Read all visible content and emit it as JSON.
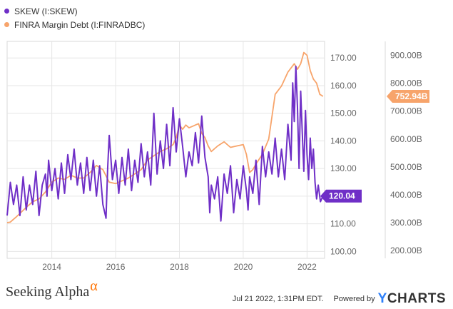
{
  "legend": [
    {
      "label": "SKEW (I:SKEW)",
      "color": "#6f2fc7"
    },
    {
      "label": "FINRA Margin Debt (I:FINRADBC)",
      "color": "#f7a46b"
    }
  ],
  "chart_data": {
    "type": "line",
    "x_ticks": [
      "2014",
      "2016",
      "2018",
      "2020",
      "2022"
    ],
    "x_range": [
      2012.6,
      2022.55
    ],
    "y_left": {
      "ticks": [
        "100.00",
        "110.00",
        "120.00",
        "130.00",
        "140.00",
        "150.00",
        "160.00",
        "170.00"
      ],
      "range": [
        97.5,
        176
      ]
    },
    "y_right": {
      "ticks": [
        "200.00B",
        "300.00B",
        "400.00B",
        "500.00B",
        "600.00B",
        "700.00B",
        "800.00B",
        "900.00B"
      ],
      "range": [
        172,
        950
      ]
    },
    "grid": true,
    "series": [
      {
        "name": "SKEW (I:SKEW)",
        "axis": "left",
        "color": "#6f2fc7",
        "last_value_label": "120.04",
        "points": [
          [
            2012.6,
            113
          ],
          [
            2012.7,
            125
          ],
          [
            2012.8,
            117
          ],
          [
            2012.9,
            124
          ],
          [
            2013.0,
            113
          ],
          [
            2013.1,
            127
          ],
          [
            2013.2,
            115
          ],
          [
            2013.3,
            124
          ],
          [
            2013.4,
            117
          ],
          [
            2013.5,
            129
          ],
          [
            2013.6,
            113
          ],
          [
            2013.7,
            124
          ],
          [
            2013.8,
            128
          ],
          [
            2013.85,
            120
          ],
          [
            2013.9,
            133
          ],
          [
            2014.0,
            122
          ],
          [
            2014.1,
            130
          ],
          [
            2014.2,
            119
          ],
          [
            2014.3,
            132
          ],
          [
            2014.4,
            121
          ],
          [
            2014.5,
            135
          ],
          [
            2014.6,
            126
          ],
          [
            2014.7,
            137
          ],
          [
            2014.8,
            124
          ],
          [
            2014.9,
            132
          ],
          [
            2015.0,
            121
          ],
          [
            2015.1,
            134
          ],
          [
            2015.2,
            122
          ],
          [
            2015.3,
            133
          ],
          [
            2015.4,
            120
          ],
          [
            2015.5,
            131
          ],
          [
            2015.6,
            117
          ],
          [
            2015.7,
            112
          ],
          [
            2015.75,
            130
          ],
          [
            2015.8,
            142
          ],
          [
            2015.9,
            126
          ],
          [
            2016.0,
            133
          ],
          [
            2016.1,
            121
          ],
          [
            2016.2,
            134
          ],
          [
            2016.3,
            124
          ],
          [
            2016.4,
            137
          ],
          [
            2016.5,
            122
          ],
          [
            2016.6,
            133
          ],
          [
            2016.7,
            125
          ],
          [
            2016.8,
            139
          ],
          [
            2016.9,
            127
          ],
          [
            2017.0,
            136
          ],
          [
            2017.1,
            124
          ],
          [
            2017.2,
            150
          ],
          [
            2017.3,
            128
          ],
          [
            2017.4,
            140
          ],
          [
            2017.5,
            130
          ],
          [
            2017.6,
            146
          ],
          [
            2017.7,
            131
          ],
          [
            2017.8,
            152
          ],
          [
            2017.9,
            136
          ],
          [
            2018.0,
            148
          ],
          [
            2018.1,
            138
          ],
          [
            2018.2,
            127
          ],
          [
            2018.3,
            136
          ],
          [
            2018.4,
            131
          ],
          [
            2018.5,
            143
          ],
          [
            2018.6,
            132
          ],
          [
            2018.7,
            149
          ],
          [
            2018.8,
            134
          ],
          [
            2018.9,
            127
          ],
          [
            2018.95,
            114
          ],
          [
            2019.0,
            124
          ],
          [
            2019.1,
            119
          ],
          [
            2019.2,
            127
          ],
          [
            2019.3,
            111
          ],
          [
            2019.4,
            128
          ],
          [
            2019.5,
            121
          ],
          [
            2019.6,
            131
          ],
          [
            2019.7,
            114
          ],
          [
            2019.8,
            126
          ],
          [
            2019.9,
            119
          ],
          [
            2020.0,
            131
          ],
          [
            2020.1,
            122
          ],
          [
            2020.15,
            115
          ],
          [
            2020.2,
            127
          ],
          [
            2020.3,
            121
          ],
          [
            2020.4,
            133
          ],
          [
            2020.5,
            117
          ],
          [
            2020.6,
            138
          ],
          [
            2020.7,
            127
          ],
          [
            2020.8,
            136
          ],
          [
            2020.9,
            128
          ],
          [
            2021.0,
            141
          ],
          [
            2021.1,
            127
          ],
          [
            2021.2,
            137
          ],
          [
            2021.3,
            126
          ],
          [
            2021.4,
            146
          ],
          [
            2021.5,
            133
          ],
          [
            2021.55,
            161
          ],
          [
            2021.6,
            147
          ],
          [
            2021.65,
            167
          ],
          [
            2021.7,
            152
          ],
          [
            2021.75,
            130
          ],
          [
            2021.8,
            158
          ],
          [
            2021.85,
            143
          ],
          [
            2021.9,
            129
          ],
          [
            2021.95,
            151
          ],
          [
            2022.0,
            135
          ],
          [
            2022.05,
            126
          ],
          [
            2022.1,
            141
          ],
          [
            2022.15,
            130
          ],
          [
            2022.2,
            137
          ],
          [
            2022.25,
            125
          ],
          [
            2022.3,
            119
          ],
          [
            2022.35,
            124
          ],
          [
            2022.42,
            118
          ],
          [
            2022.5,
            120.04
          ]
        ]
      },
      {
        "name": "FINRA Margin Debt (I:FINRADBC)",
        "axis": "right",
        "color": "#f7a46b",
        "last_value_label": "752.94B",
        "points": [
          [
            2012.6,
            300
          ],
          [
            2012.7,
            302
          ],
          [
            2012.8,
            312
          ],
          [
            2012.9,
            322
          ],
          [
            2013.0,
            333
          ],
          [
            2013.2,
            355
          ],
          [
            2013.4,
            375
          ],
          [
            2013.6,
            385
          ],
          [
            2013.8,
            410
          ],
          [
            2014.0,
            445
          ],
          [
            2014.2,
            460
          ],
          [
            2014.4,
            455
          ],
          [
            2014.6,
            470
          ],
          [
            2014.8,
            460
          ],
          [
            2015.0,
            460
          ],
          [
            2015.2,
            480
          ],
          [
            2015.4,
            505
          ],
          [
            2015.6,
            490
          ],
          [
            2015.8,
            445
          ],
          [
            2016.0,
            440
          ],
          [
            2016.2,
            450
          ],
          [
            2016.4,
            460
          ],
          [
            2016.6,
            475
          ],
          [
            2016.8,
            490
          ],
          [
            2017.0,
            525
          ],
          [
            2017.2,
            540
          ],
          [
            2017.4,
            555
          ],
          [
            2017.6,
            565
          ],
          [
            2017.8,
            580
          ],
          [
            2017.9,
            605
          ],
          [
            2018.0,
            650
          ],
          [
            2018.1,
            635
          ],
          [
            2018.2,
            650
          ],
          [
            2018.3,
            640
          ],
          [
            2018.4,
            645
          ],
          [
            2018.5,
            650
          ],
          [
            2018.6,
            655
          ],
          [
            2018.7,
            620
          ],
          [
            2018.8,
            605
          ],
          [
            2018.9,
            575
          ],
          [
            2019.0,
            555
          ],
          [
            2019.2,
            575
          ],
          [
            2019.4,
            590
          ],
          [
            2019.6,
            570
          ],
          [
            2019.8,
            575
          ],
          [
            2020.0,
            580
          ],
          [
            2020.1,
            545
          ],
          [
            2020.2,
            480
          ],
          [
            2020.3,
            490
          ],
          [
            2020.4,
            510
          ],
          [
            2020.6,
            545
          ],
          [
            2020.8,
            600
          ],
          [
            2021.0,
            760
          ],
          [
            2021.2,
            790
          ],
          [
            2021.4,
            840
          ],
          [
            2021.6,
            870
          ],
          [
            2021.7,
            850
          ],
          [
            2021.8,
            870
          ],
          [
            2021.9,
            910
          ],
          [
            2022.0,
            900
          ],
          [
            2022.1,
            845
          ],
          [
            2022.2,
            815
          ],
          [
            2022.3,
            800
          ],
          [
            2022.4,
            760
          ],
          [
            2022.5,
            752.94
          ]
        ]
      }
    ]
  },
  "footer": {
    "brand": "Seeking Alpha",
    "brand_symbol": "α",
    "timestamp": "Jul 21 2022, 1:31PM EDT.",
    "powered_by": "Powered by",
    "ycharts_y": "Y",
    "ycharts_rest": "CHARTS"
  }
}
